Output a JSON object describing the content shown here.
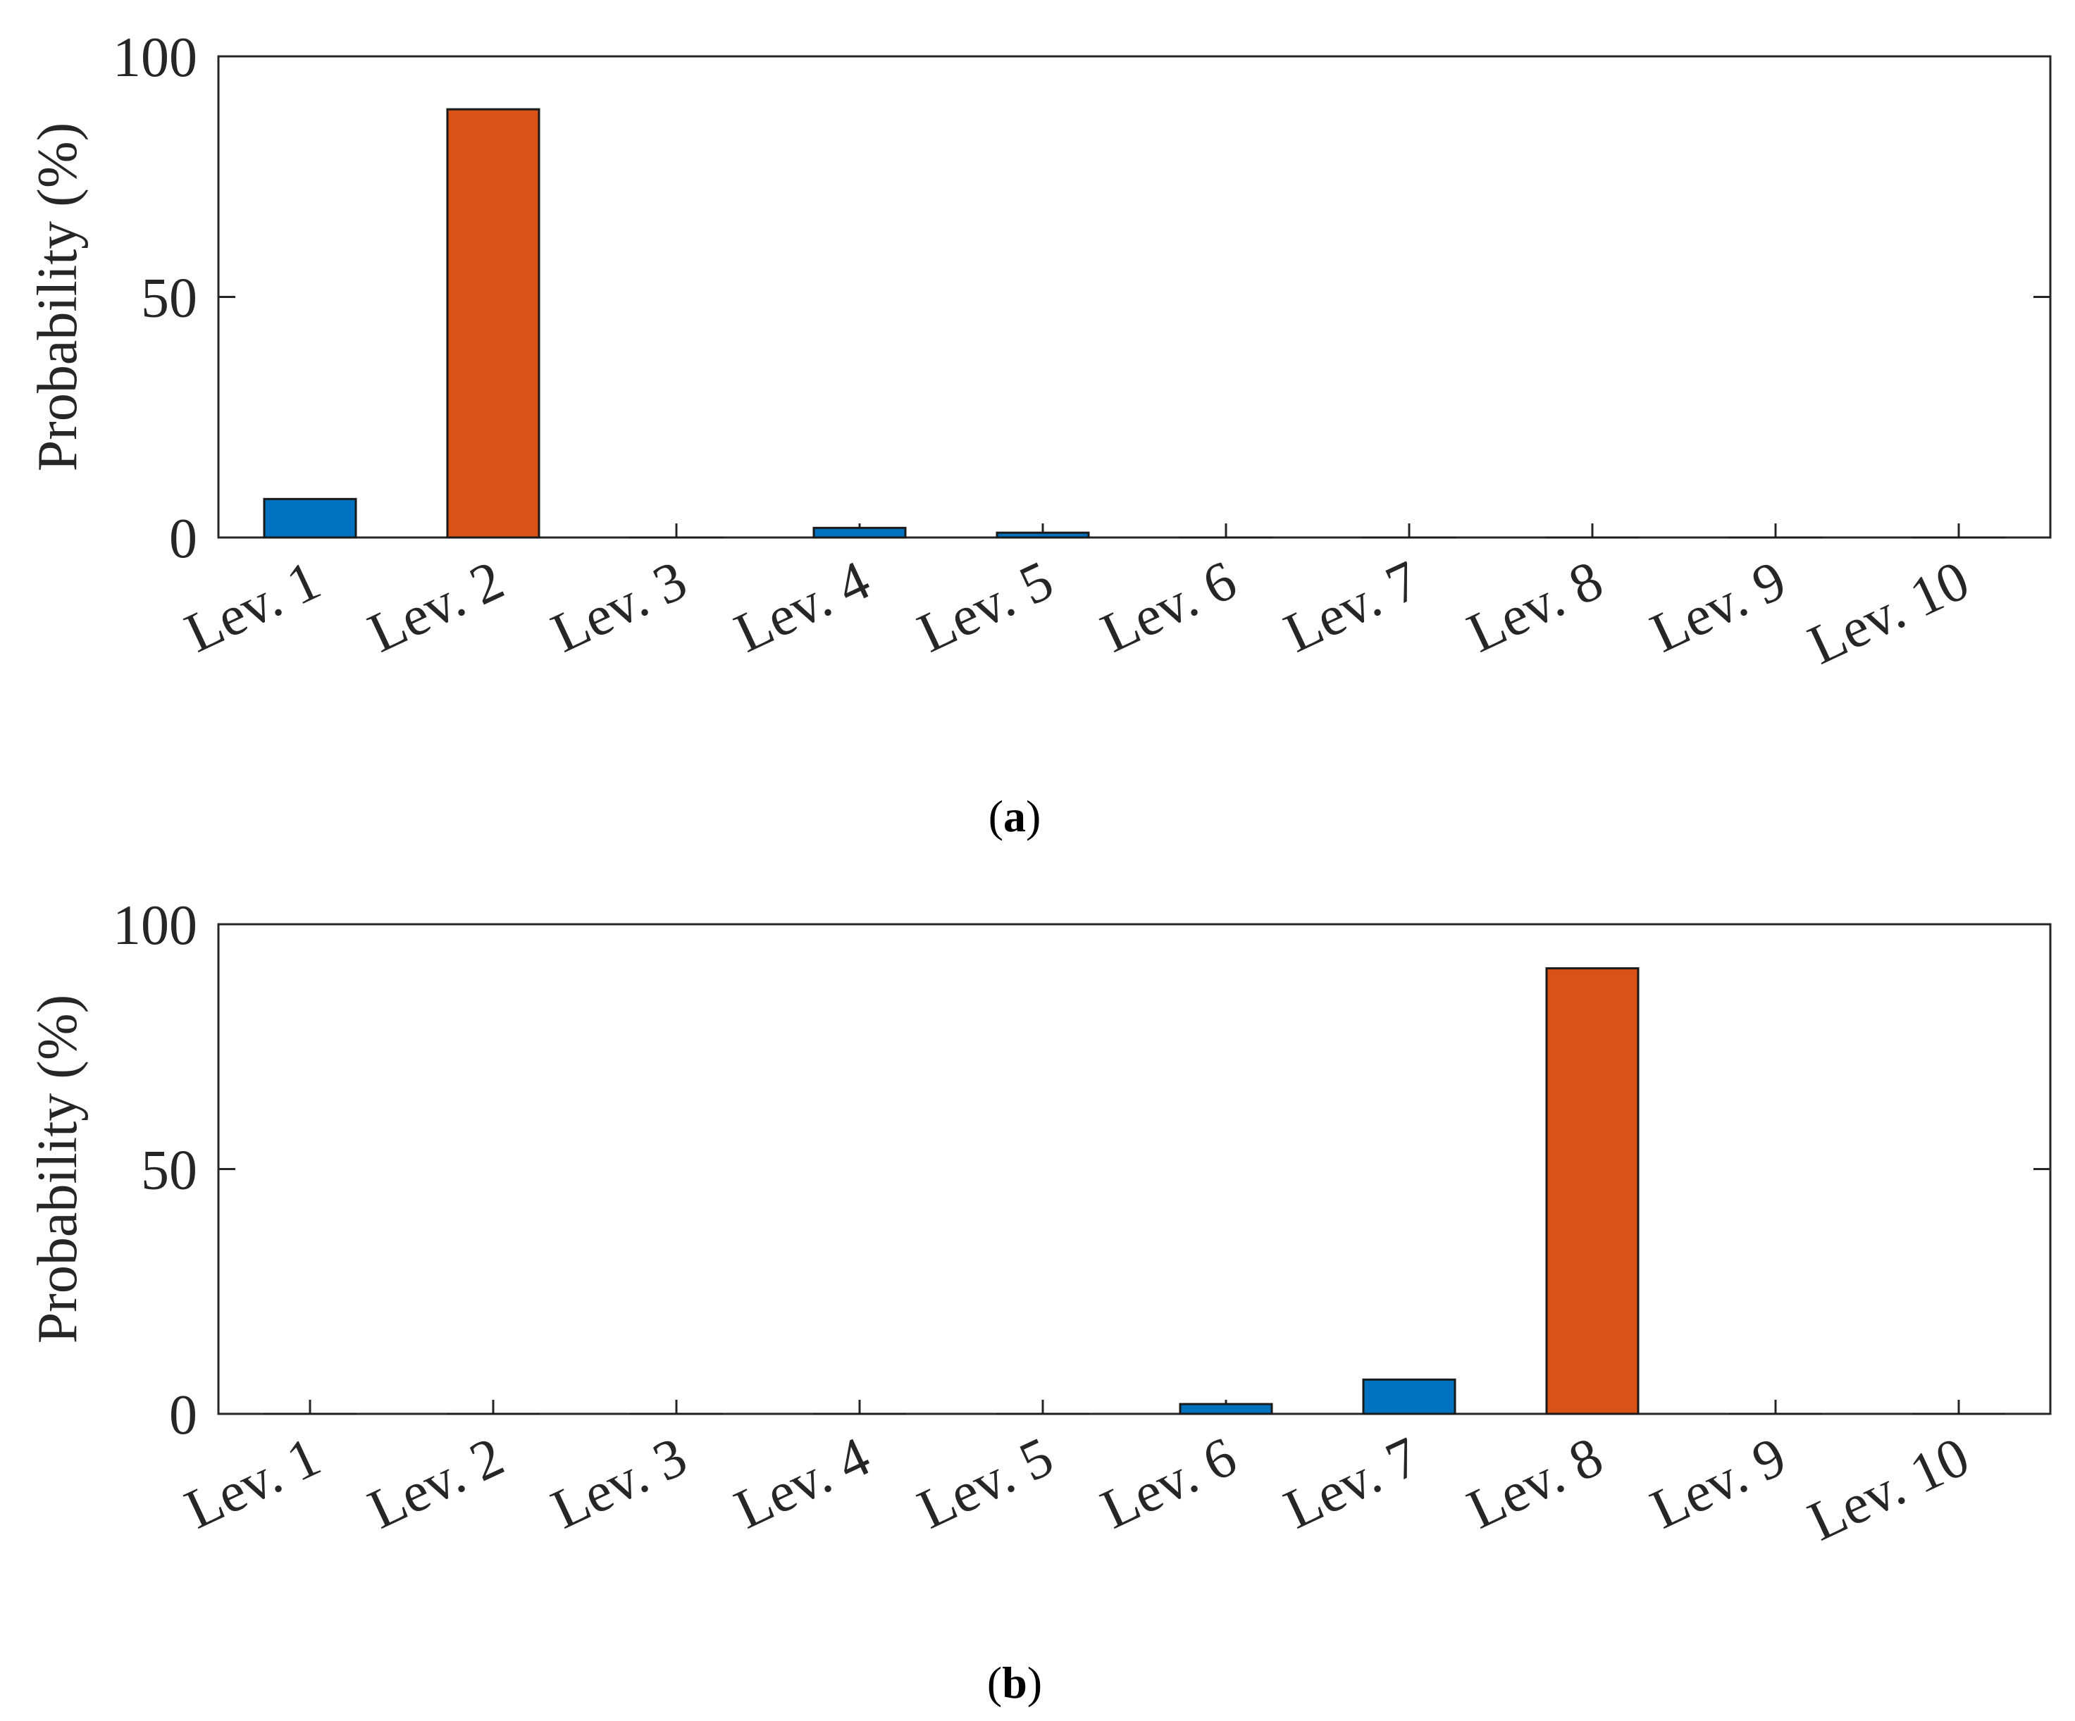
{
  "chart_data": [
    {
      "type": "bar",
      "panel_label": "a",
      "categories": [
        "Lev. 1",
        "Lev. 2",
        "Lev. 3",
        "Lev. 4",
        "Lev. 5",
        "Lev. 6",
        "Lev. 7",
        "Lev. 8",
        "Lev. 9",
        "Lev. 10"
      ],
      "values": [
        8,
        89,
        0,
        2,
        1,
        0,
        0,
        0,
        0,
        0
      ],
      "bar_colors": [
        "#0072BD",
        "#D95319",
        "#0072BD",
        "#0072BD",
        "#0072BD",
        "#0072BD",
        "#0072BD",
        "#0072BD",
        "#0072BD",
        "#0072BD"
      ],
      "ylabel": "Probability (%)",
      "ylim": [
        0,
        100
      ],
      "yticks": [
        "0",
        "50",
        "100"
      ],
      "grid": false
    },
    {
      "type": "bar",
      "panel_label": "b",
      "categories": [
        "Lev. 1",
        "Lev. 2",
        "Lev. 3",
        "Lev. 4",
        "Lev. 5",
        "Lev. 6",
        "Lev. 7",
        "Lev. 8",
        "Lev. 9",
        "Lev. 10"
      ],
      "values": [
        0,
        0,
        0,
        0,
        0,
        2,
        7,
        91,
        0,
        0
      ],
      "bar_colors": [
        "#0072BD",
        "#0072BD",
        "#0072BD",
        "#0072BD",
        "#0072BD",
        "#0072BD",
        "#0072BD",
        "#D95319",
        "#0072BD",
        "#0072BD"
      ],
      "ylabel": "Probability (%)",
      "ylim": [
        0,
        100
      ],
      "yticks": [
        "0",
        "50",
        "100"
      ],
      "grid": false
    }
  ],
  "colors": {
    "highlight_bar": "#D95319",
    "normal_bar": "#0072BD",
    "axis": "#262626"
  }
}
